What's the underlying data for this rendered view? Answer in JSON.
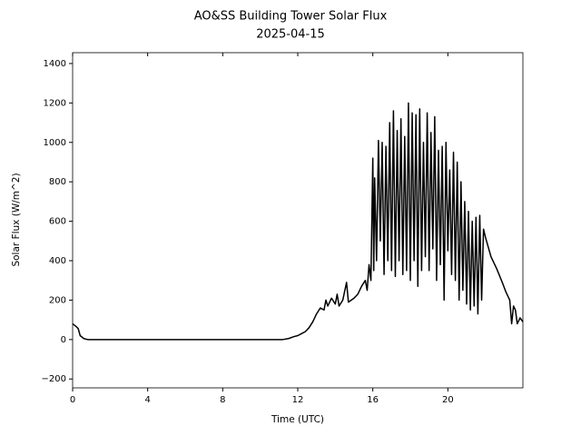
{
  "chart_data": {
    "type": "line",
    "title": "AO&SS Building Tower Solar Flux",
    "subtitle": "2025-04-15",
    "x_label": "Time (UTC)",
    "y_label": "Solar Flux (W/m^2)",
    "x": [
      0,
      0.2,
      0.3,
      0.4,
      0.6,
      0.8,
      2,
      4,
      6,
      8,
      10,
      11.2,
      11.5,
      11.8,
      12,
      12.2,
      12.4,
      12.6,
      12.8,
      13,
      13.2,
      13.4,
      13.5,
      13.6,
      13.8,
      14,
      14.1,
      14.2,
      14.4,
      14.6,
      14.7,
      15,
      15.2,
      15.4,
      15.6,
      15.7,
      15.8,
      15.9,
      16.0,
      16.05,
      16.1,
      16.2,
      16.3,
      16.4,
      16.5,
      16.6,
      16.7,
      16.8,
      16.9,
      17.0,
      17.1,
      17.2,
      17.3,
      17.4,
      17.5,
      17.6,
      17.7,
      17.8,
      17.9,
      18.0,
      18.1,
      18.2,
      18.3,
      18.4,
      18.5,
      18.6,
      18.7,
      18.8,
      18.9,
      19.0,
      19.1,
      19.2,
      19.3,
      19.4,
      19.5,
      19.6,
      19.7,
      19.8,
      19.9,
      20.0,
      20.1,
      20.2,
      20.3,
      20.4,
      20.5,
      20.6,
      20.7,
      20.8,
      20.9,
      21.0,
      21.1,
      21.2,
      21.3,
      21.4,
      21.5,
      21.6,
      21.7,
      21.8,
      21.9,
      22.0,
      22.3,
      22.6,
      22.9,
      23.1,
      23.3,
      23.4,
      23.5,
      23.6,
      23.7,
      23.85,
      24
    ],
    "series": [
      {
        "name": "Solar Flux",
        "color": "#000000",
        "values": [
          80,
          65,
          55,
          20,
          5,
          0,
          0,
          0,
          0,
          0,
          0,
          0,
          5,
          15,
          20,
          30,
          40,
          60,
          90,
          130,
          160,
          150,
          200,
          170,
          210,
          180,
          230,
          170,
          200,
          290,
          190,
          210,
          230,
          270,
          300,
          250,
          380,
          300,
          920,
          350,
          820,
          400,
          1010,
          500,
          1000,
          330,
          980,
          400,
          1100,
          350,
          1160,
          320,
          1060,
          400,
          1120,
          330,
          1030,
          350,
          1200,
          300,
          1150,
          400,
          1140,
          270,
          1170,
          350,
          1000,
          420,
          1150,
          350,
          1050,
          460,
          1130,
          300,
          960,
          380,
          980,
          200,
          1000,
          450,
          860,
          330,
          950,
          300,
          900,
          200,
          800,
          250,
          700,
          180,
          650,
          150,
          600,
          170,
          620,
          130,
          630,
          200,
          560,
          520,
          420,
          360,
          290,
          240,
          200,
          80,
          170,
          150,
          80,
          110,
          90
        ]
      }
    ],
    "xlim": [
      0,
      24
    ],
    "xticks": [
      0,
      4,
      8,
      12,
      16,
      20
    ],
    "ylim": [
      -245,
      1455
    ],
    "yticks": [
      {
        "value": -200,
        "label": "−200"
      },
      0,
      200,
      400,
      600,
      800,
      1000,
      1200,
      1400
    ]
  }
}
